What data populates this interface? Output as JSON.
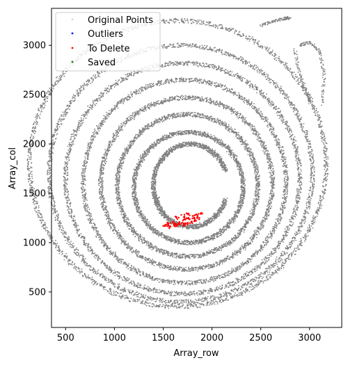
{
  "chart_data": {
    "type": "scatter",
    "xlabel": "Array_row",
    "ylabel": "Array_col",
    "xlim": [
      355,
      3330
    ],
    "ylim": [
      140,
      3375
    ],
    "x_ticks": [
      500,
      1000,
      1500,
      2000,
      2500,
      3000
    ],
    "y_ticks": [
      500,
      1000,
      1500,
      2000,
      2500,
      3000
    ],
    "grid": false,
    "legend": {
      "placement": "top-left",
      "entries": [
        {
          "label": "Original Points",
          "color": "#d3d3d3"
        },
        {
          "label": "Outliers",
          "color": "#0000ff"
        },
        {
          "label": "To Delete",
          "color": "#ff0000"
        },
        {
          "label": "Saved",
          "color": "#008000"
        }
      ]
    },
    "series": [
      {
        "name": "Original Points",
        "color": "#808080",
        "rings": [
          {
            "cx": 1650,
            "cy": 1800,
            "rx": 1520,
            "ry": 1450,
            "start": 0,
            "end": 360
          },
          {
            "cx": 1680,
            "cy": 1700,
            "rx": 1350,
            "ry": 1300,
            "start": 0,
            "end": 360
          },
          {
            "cx": 1700,
            "cy": 1650,
            "rx": 1200,
            "ry": 1170,
            "start": 0,
            "end": 360
          },
          {
            "cx": 1720,
            "cy": 1620,
            "rx": 1040,
            "ry": 1030,
            "start": 0,
            "end": 360
          },
          {
            "cx": 1740,
            "cy": 1600,
            "rx": 880,
            "ry": 870,
            "start": 0,
            "end": 360
          },
          {
            "cx": 1750,
            "cy": 1580,
            "rx": 720,
            "ry": 720,
            "start": 0,
            "end": 360
          },
          {
            "cx": 1760,
            "cy": 1560,
            "rx": 560,
            "ry": 560,
            "start": 0,
            "end": 360
          },
          {
            "cx": 1780,
            "cy": 1580,
            "rx": 380,
            "ry": 420,
            "start": 20,
            "end": 340
          }
        ],
        "arcs": [
          {
            "x": [
              2500,
              2620,
              2740,
              2800
            ],
            "y": [
              3200,
              3240,
              3270,
              3280
            ]
          },
          {
            "x": [
              2900,
              3000,
              3100,
              3150,
              3130
            ],
            "y": [
              3000,
              3030,
              2950,
              2700,
              2400
            ]
          },
          {
            "x": [
              2850,
              2900,
              2980,
              3000
            ],
            "y": [
              2950,
              2700,
              2500,
              2420
            ]
          }
        ]
      },
      {
        "name": "To Delete",
        "color": "#ff0000",
        "points": [
          [
            1520,
            1180
          ],
          [
            1560,
            1190
          ],
          [
            1600,
            1200
          ],
          [
            1640,
            1180
          ],
          [
            1680,
            1200
          ],
          [
            1720,
            1230
          ],
          [
            1760,
            1240
          ],
          [
            1800,
            1260
          ],
          [
            1840,
            1280
          ],
          [
            1880,
            1290
          ],
          [
            1560,
            1160
          ],
          [
            1620,
            1170
          ],
          [
            1700,
            1180
          ],
          [
            1740,
            1190
          ],
          [
            1780,
            1210
          ],
          [
            1820,
            1230
          ],
          [
            1860,
            1250
          ],
          [
            1640,
            1250
          ],
          [
            1700,
            1270
          ],
          [
            1760,
            1290
          ]
        ]
      },
      {
        "name": "Outliers",
        "color": "#0000ff",
        "points": []
      },
      {
        "name": "Saved",
        "color": "#008000",
        "points": []
      }
    ]
  }
}
